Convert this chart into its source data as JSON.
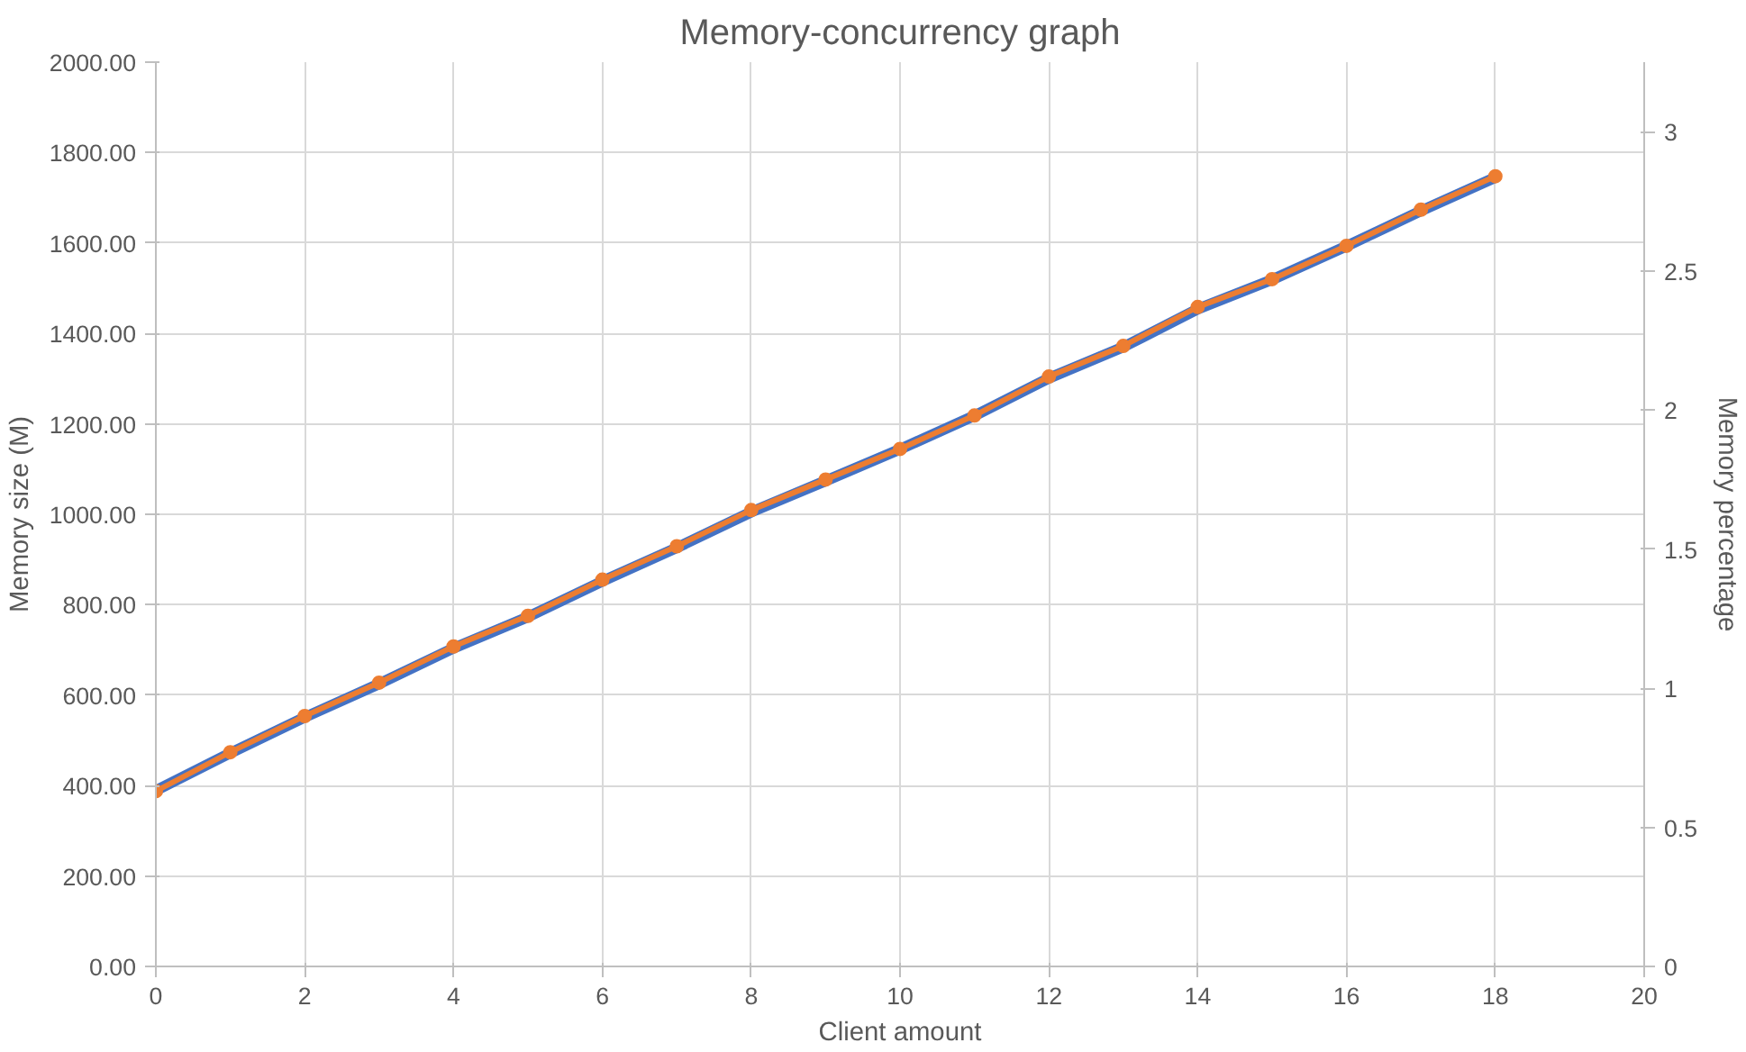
{
  "chart_data": {
    "type": "line",
    "title": "Memory-concurrency graph",
    "xlabel": "Client amount",
    "ylabel": "Memory size (M)",
    "y2label": "Memory percentage",
    "x": [
      0,
      1,
      2,
      3,
      4,
      5,
      6,
      7,
      8,
      9,
      10,
      11,
      12,
      13,
      14,
      15,
      16,
      17,
      18
    ],
    "series": [
      {
        "color": "#4472c4",
        "marker": "none",
        "values": [
          389,
          472,
          551,
          625,
          704,
          773,
          852,
          926,
          1005,
          1074,
          1144,
          1218,
          1301,
          1370,
          1454,
          1519,
          1593,
          1671,
          1745
        ]
      },
      {
        "color": "#ed7d31",
        "marker": "circle",
        "axis": "y2",
        "values": [
          0.63,
          0.77,
          0.9,
          1.02,
          1.15,
          1.26,
          1.39,
          1.51,
          1.64,
          1.75,
          1.86,
          1.98,
          2.12,
          2.23,
          2.37,
          2.47,
          2.59,
          2.72,
          2.84
        ]
      }
    ],
    "xlim": [
      0,
      20
    ],
    "xticks": [
      0,
      2,
      4,
      6,
      8,
      10,
      12,
      14,
      16,
      18,
      20
    ],
    "ylim": [
      0,
      2000
    ],
    "yticks": [
      {
        "value": 0,
        "label": "0.00"
      },
      {
        "value": 200,
        "label": "200.00"
      },
      {
        "value": 400,
        "label": "400.00"
      },
      {
        "value": 600,
        "label": "600.00"
      },
      {
        "value": 800,
        "label": "800.00"
      },
      {
        "value": 1000,
        "label": "1000.00"
      },
      {
        "value": 1200,
        "label": "1200.00"
      },
      {
        "value": 1400,
        "label": "1400.00"
      },
      {
        "value": 1600,
        "label": "1600.00"
      },
      {
        "value": 1800,
        "label": "1800.00"
      },
      {
        "value": 2000,
        "label": "2000.00"
      }
    ],
    "y2lim": [
      0,
      3.25
    ],
    "y2ticks": [
      0,
      0.5,
      1,
      1.5,
      2,
      2.5,
      3
    ],
    "grid": true,
    "line_style": "solid"
  }
}
